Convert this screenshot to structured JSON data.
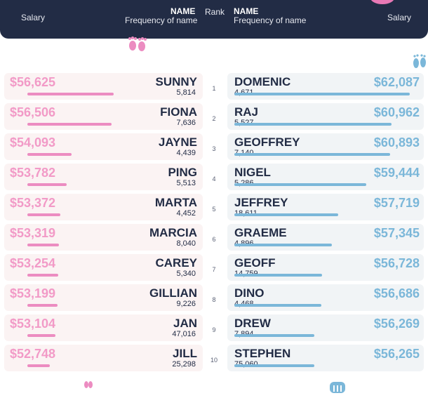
{
  "header": {
    "left_salary": "Salary",
    "left_name": "NAME",
    "left_freq": "Frequency of name",
    "rank": "Rank",
    "right_name": "NAME",
    "right_freq": "Frequency of name",
    "right_salary": "Salary"
  },
  "colors": {
    "pink": "#ec8cc1",
    "pink_text": "#f29ac7",
    "blue": "#7bb7d9",
    "navy": "#222c45"
  },
  "icons": [
    "baby-feet-pink-icon",
    "baby-feet-blue-icon",
    "baby-footprint-pink-icon",
    "baby-footprint-blue-icon"
  ],
  "chart_data": {
    "type": "table",
    "ranks": [
      1,
      2,
      3,
      4,
      5,
      6,
      7,
      8,
      9,
      10
    ],
    "female": [
      {
        "name": "SUNNY",
        "salary": "$56,625",
        "frequency": "5,814",
        "salary_value": 56625
      },
      {
        "name": "FIONA",
        "salary": "$56,506",
        "frequency": "7,636",
        "salary_value": 56506
      },
      {
        "name": "JAYNE",
        "salary": "$54,093",
        "frequency": "4,439",
        "salary_value": 54093
      },
      {
        "name": "PING",
        "salary": "$53,782",
        "frequency": "5,513",
        "salary_value": 53782
      },
      {
        "name": "MARTA",
        "salary": "$53,372",
        "frequency": "4,452",
        "salary_value": 53372
      },
      {
        "name": "MARCIA",
        "salary": "$53,319",
        "frequency": "8,040",
        "salary_value": 53319
      },
      {
        "name": "CAREY",
        "salary": "$53,254",
        "frequency": "5,340",
        "salary_value": 53254
      },
      {
        "name": "GILLIAN",
        "salary": "$53,199",
        "frequency": "9,226",
        "salary_value": 53199
      },
      {
        "name": "JAN",
        "salary": "$53,104",
        "frequency": "47,016",
        "salary_value": 53104
      },
      {
        "name": "JILL",
        "salary": "$52,748",
        "frequency": "25,298",
        "salary_value": 52748
      }
    ],
    "male": [
      {
        "name": "DOMENIC",
        "salary": "$62,087",
        "frequency": "4,671",
        "salary_value": 62087
      },
      {
        "name": "RAJ",
        "salary": "$60,962",
        "frequency": "5,527",
        "salary_value": 60962
      },
      {
        "name": "GEOFFREY",
        "salary": "$60,893",
        "frequency": "7,140",
        "salary_value": 60893
      },
      {
        "name": "NIGEL",
        "salary": "$59,444",
        "frequency": "5,286",
        "salary_value": 59444
      },
      {
        "name": "JEFFREY",
        "salary": "$57,719",
        "frequency": "18,611",
        "salary_value": 57719
      },
      {
        "name": "GRAEME",
        "salary": "$57,345",
        "frequency": "4,896",
        "salary_value": 57345
      },
      {
        "name": "GEOFF",
        "salary": "$56,728",
        "frequency": "14,759",
        "salary_value": 56728
      },
      {
        "name": "DINO",
        "salary": "$56,686",
        "frequency": "4,468",
        "salary_value": 56686
      },
      {
        "name": "DREW",
        "salary": "$56,269",
        "frequency": "7,894",
        "salary_value": 56269
      },
      {
        "name": "STEPHEN",
        "salary": "$56,265",
        "frequency": "75,060",
        "salary_value": 56265
      }
    ]
  }
}
